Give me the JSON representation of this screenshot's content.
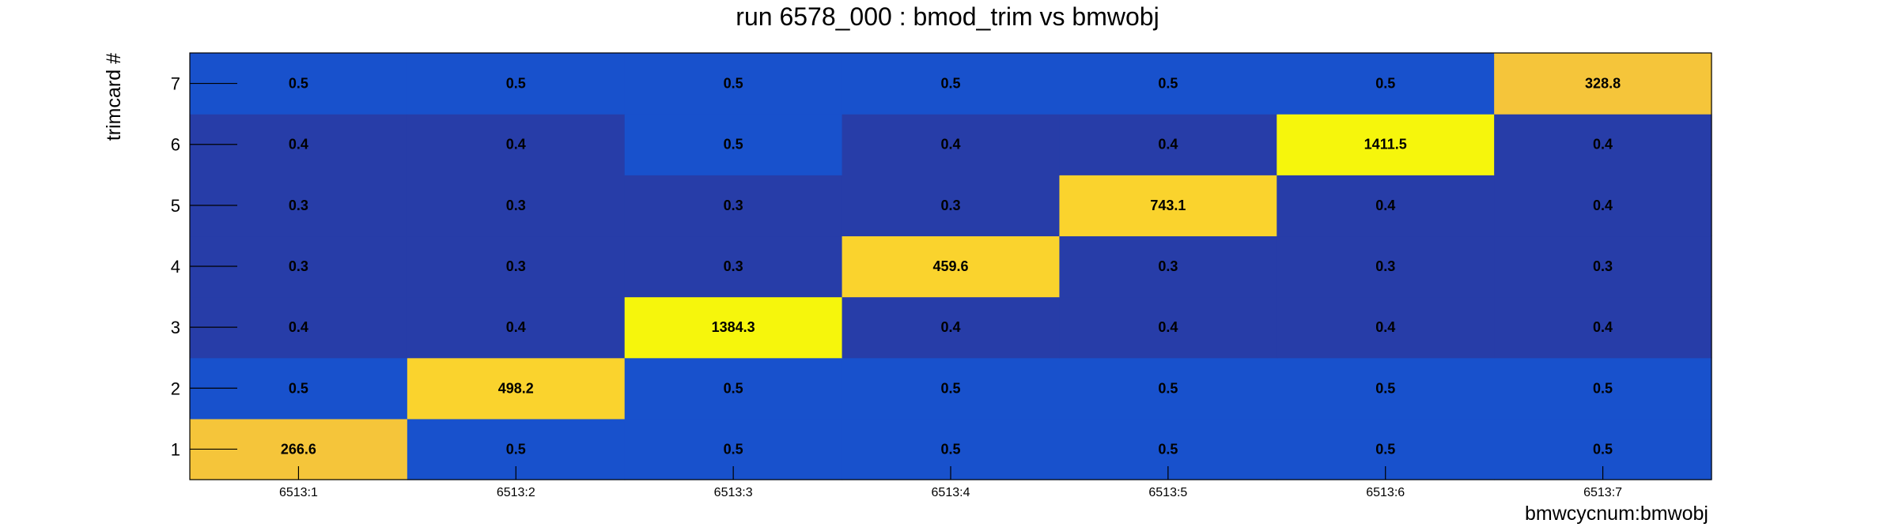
{
  "chart_data": {
    "type": "heatmap",
    "title": "run 6578_000 : bmod_trim vs bmwobj",
    "xlabel": "bmwcycnum:bmwobj",
    "ylabel": "trimcard #",
    "x_categories": [
      "6513:1",
      "6513:2",
      "6513:3",
      "6513:4",
      "6513:5",
      "6513:6",
      "6513:7"
    ],
    "y_categories": [
      "1",
      "2",
      "3",
      "4",
      "5",
      "6",
      "7"
    ],
    "values": [
      [
        266.6,
        0.5,
        0.5,
        0.5,
        0.5,
        0.5,
        0.5
      ],
      [
        0.5,
        498.2,
        0.5,
        0.5,
        0.5,
        0.5,
        0.5
      ],
      [
        0.4,
        0.4,
        1384.3,
        0.4,
        0.4,
        0.4,
        0.4
      ],
      [
        0.3,
        0.3,
        0.3,
        459.6,
        0.3,
        0.3,
        0.3
      ],
      [
        0.3,
        0.3,
        0.3,
        0.3,
        743.1,
        0.4,
        0.4
      ],
      [
        0.4,
        0.4,
        0.5,
        0.4,
        0.4,
        1411.5,
        0.4
      ],
      [
        0.5,
        0.5,
        0.5,
        0.5,
        0.5,
        0.5,
        328.8
      ]
    ],
    "colors": {
      "low": "#273da8",
      "mid_low": "#1851cc",
      "high": "#f5c53a",
      "mid_high": "#fad32d",
      "peak": "#f6f60c"
    },
    "grid": false,
    "legend": "none"
  }
}
